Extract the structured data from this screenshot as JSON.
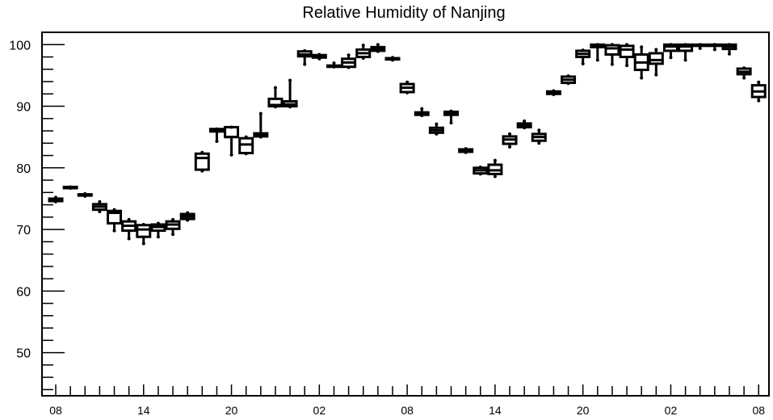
{
  "chart_data": {
    "type": "boxplot",
    "title": "Relative Humidity of Nanjing",
    "xlabel": "",
    "ylabel": "",
    "ylim": [
      43,
      102
    ],
    "y_ticks": [
      50,
      60,
      70,
      80,
      90,
      100
    ],
    "x_tick_labels": [
      "08",
      "14",
      "20",
      "02",
      "08",
      "14",
      "20",
      "02",
      "08"
    ],
    "x_tick_positions": [
      0,
      6,
      12,
      18,
      24,
      30,
      36,
      42,
      48
    ],
    "grid": false,
    "boxes": [
      {
        "x": 0,
        "q1": 74.6,
        "median": 74.8,
        "q3": 75.0,
        "whislo": 74.5,
        "whishi": 75.2
      },
      {
        "x": 1,
        "q1": 76.7,
        "median": 76.8,
        "q3": 76.9,
        "whislo": 76.7,
        "whishi": 76.9
      },
      {
        "x": 2,
        "q1": 75.5,
        "median": 75.6,
        "q3": 75.7,
        "whislo": 75.4,
        "whishi": 75.8
      },
      {
        "x": 3,
        "q1": 73.2,
        "median": 73.7,
        "q3": 74.1,
        "whislo": 72.9,
        "whishi": 74.5
      },
      {
        "x": 4,
        "q1": 71.0,
        "median": 72.7,
        "q3": 73.0,
        "whislo": 69.8,
        "whishi": 73.2
      },
      {
        "x": 5,
        "q1": 69.8,
        "median": 70.6,
        "q3": 71.3,
        "whislo": 68.5,
        "whishi": 71.6
      },
      {
        "x": 6,
        "q1": 68.8,
        "median": 70.0,
        "q3": 70.7,
        "whislo": 67.7,
        "whishi": 70.8
      },
      {
        "x": 7,
        "q1": 69.8,
        "median": 70.4,
        "q3": 70.8,
        "whislo": 68.8,
        "whishi": 71.0
      },
      {
        "x": 8,
        "q1": 70.1,
        "median": 70.8,
        "q3": 71.3,
        "whislo": 69.2,
        "whishi": 71.6
      },
      {
        "x": 9,
        "q1": 71.7,
        "median": 72.1,
        "q3": 72.5,
        "whislo": 71.5,
        "whishi": 72.7
      },
      {
        "x": 10,
        "q1": 79.7,
        "median": 81.6,
        "q3": 82.3,
        "whislo": 79.5,
        "whishi": 82.5
      },
      {
        "x": 11,
        "q1": 85.9,
        "median": 86.1,
        "q3": 86.3,
        "whislo": 84.3,
        "whishi": 86.3
      },
      {
        "x": 12,
        "q1": 85.0,
        "median": 85.0,
        "q3": 86.6,
        "whislo": 82.1,
        "whishi": 86.6
      },
      {
        "x": 13,
        "q1": 82.4,
        "median": 83.8,
        "q3": 84.8,
        "whislo": 82.3,
        "whishi": 85.0
      },
      {
        "x": 14,
        "q1": 85.1,
        "median": 85.4,
        "q3": 85.6,
        "whislo": 85.0,
        "whishi": 88.8
      },
      {
        "x": 15,
        "q1": 90.0,
        "median": 90.2,
        "q3": 91.2,
        "whislo": 89.9,
        "whishi": 93.0
      },
      {
        "x": 16,
        "q1": 90.0,
        "median": 90.3,
        "q3": 90.8,
        "whislo": 89.9,
        "whishi": 94.2
      },
      {
        "x": 17,
        "q1": 98.1,
        "median": 98.4,
        "q3": 98.9,
        "whislo": 96.8,
        "whishi": 99.0
      },
      {
        "x": 18,
        "q1": 97.9,
        "median": 98.1,
        "q3": 98.3,
        "whislo": 97.7,
        "whishi": 98.4
      },
      {
        "x": 19,
        "q1": 96.4,
        "median": 96.5,
        "q3": 96.6,
        "whislo": 96.4,
        "whishi": 97.0
      },
      {
        "x": 20,
        "q1": 96.4,
        "median": 97.1,
        "q3": 97.7,
        "whislo": 96.3,
        "whishi": 98.3
      },
      {
        "x": 21,
        "q1": 98.0,
        "median": 98.6,
        "q3": 99.2,
        "whislo": 97.8,
        "whishi": 99.9
      },
      {
        "x": 22,
        "q1": 99.0,
        "median": 99.3,
        "q3": 99.6,
        "whislo": 98.9,
        "whishi": 100.0
      },
      {
        "x": 23,
        "q1": 97.6,
        "median": 97.7,
        "q3": 97.8,
        "whislo": 97.5,
        "whishi": 97.9
      },
      {
        "x": 24,
        "q1": 92.3,
        "median": 93.0,
        "q3": 93.6,
        "whislo": 92.2,
        "whishi": 93.9
      },
      {
        "x": 25,
        "q1": 88.6,
        "median": 88.8,
        "q3": 89.0,
        "whislo": 88.5,
        "whishi": 89.6
      },
      {
        "x": 26,
        "q1": 85.7,
        "median": 86.1,
        "q3": 86.5,
        "whislo": 85.5,
        "whishi": 87.1
      },
      {
        "x": 27,
        "q1": 88.6,
        "median": 88.8,
        "q3": 89.1,
        "whislo": 87.3,
        "whishi": 89.2
      },
      {
        "x": 28,
        "q1": 82.6,
        "median": 82.8,
        "q3": 83.0,
        "whislo": 82.5,
        "whishi": 83.1
      },
      {
        "x": 29,
        "q1": 79.1,
        "median": 79.6,
        "q3": 80.0,
        "whislo": 79.0,
        "whishi": 80.1
      },
      {
        "x": 30,
        "q1": 79.0,
        "median": 79.6,
        "q3": 80.5,
        "whislo": 78.6,
        "whishi": 81.2
      },
      {
        "x": 31,
        "q1": 83.9,
        "median": 84.6,
        "q3": 85.1,
        "whislo": 83.4,
        "whishi": 85.5
      },
      {
        "x": 32,
        "q1": 86.6,
        "median": 86.9,
        "q3": 87.2,
        "whislo": 86.5,
        "whishi": 87.6
      },
      {
        "x": 33,
        "q1": 84.4,
        "median": 85.0,
        "q3": 85.5,
        "whislo": 84.0,
        "whishi": 86.1
      },
      {
        "x": 34,
        "q1": 92.0,
        "median": 92.2,
        "q3": 92.4,
        "whislo": 91.9,
        "whishi": 92.5
      },
      {
        "x": 35,
        "q1": 93.8,
        "median": 94.3,
        "q3": 94.8,
        "whislo": 93.7,
        "whishi": 94.9
      },
      {
        "x": 36,
        "q1": 98.0,
        "median": 98.5,
        "q3": 99.0,
        "whislo": 96.9,
        "whishi": 99.1
      },
      {
        "x": 37,
        "q1": 99.6,
        "median": 99.9,
        "q3": 100.0,
        "whislo": 97.5,
        "whishi": 100.0
      },
      {
        "x": 38,
        "q1": 98.4,
        "median": 99.4,
        "q3": 99.9,
        "whislo": 96.8,
        "whishi": 100.0
      },
      {
        "x": 39,
        "q1": 98.0,
        "median": 99.2,
        "q3": 99.8,
        "whislo": 96.6,
        "whishi": 100.0
      },
      {
        "x": 40,
        "q1": 95.9,
        "median": 97.1,
        "q3": 98.4,
        "whislo": 94.6,
        "whishi": 99.6
      },
      {
        "x": 41,
        "q1": 96.9,
        "median": 97.5,
        "q3": 98.6,
        "whislo": 95.1,
        "whishi": 99.2
      },
      {
        "x": 42,
        "q1": 99.0,
        "median": 99.7,
        "q3": 100.0,
        "whislo": 97.9,
        "whishi": 100.0
      },
      {
        "x": 43,
        "q1": 99.0,
        "median": 99.7,
        "q3": 100.0,
        "whislo": 97.5,
        "whishi": 100.0
      },
      {
        "x": 44,
        "q1": 99.8,
        "median": 99.9,
        "q3": 100.0,
        "whislo": 99.4,
        "whishi": 100.0
      },
      {
        "x": 45,
        "q1": 99.8,
        "median": 99.9,
        "q3": 100.0,
        "whislo": 99.2,
        "whishi": 100.0
      },
      {
        "x": 46,
        "q1": 99.3,
        "median": 99.7,
        "q3": 100.0,
        "whislo": 98.5,
        "whishi": 100.0
      },
      {
        "x": 47,
        "q1": 95.2,
        "median": 95.6,
        "q3": 96.1,
        "whislo": 94.6,
        "whishi": 96.2
      },
      {
        "x": 48,
        "q1": 91.5,
        "median": 92.4,
        "q3": 93.4,
        "whislo": 90.9,
        "whishi": 93.9
      }
    ]
  }
}
